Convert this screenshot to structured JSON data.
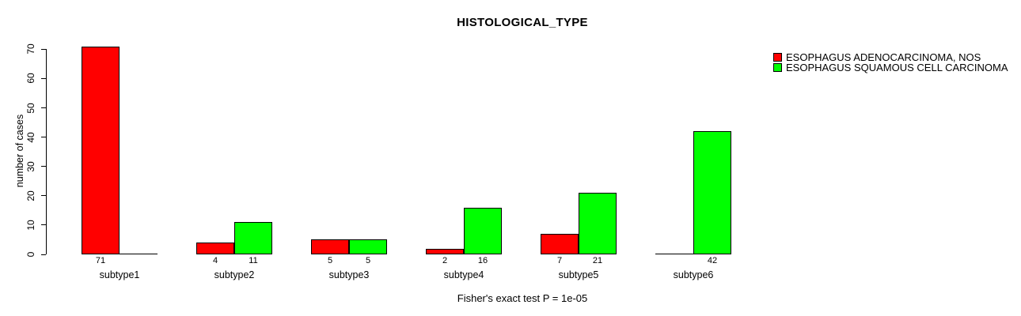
{
  "chart_data": {
    "type": "bar",
    "title": "HISTOLOGICAL_TYPE",
    "ylabel": "number of cases",
    "xlabel": "",
    "footnote": "Fisher's exact test P = 1e-05",
    "categories": [
      "subtype1",
      "subtype2",
      "subtype3",
      "subtype4",
      "subtype5",
      "subtype6"
    ],
    "series": [
      {
        "name": "ESOPHAGUS ADENOCARCINOMA, NOS",
        "color": "#ff0000",
        "values": [
          71,
          4,
          5,
          2,
          7,
          0
        ],
        "bar_labels": [
          "71",
          "4",
          "5",
          "2",
          "7",
          ""
        ]
      },
      {
        "name": "ESOPHAGUS SQUAMOUS CELL CARCINOMA",
        "color": "#00ff00",
        "values": [
          0,
          11,
          5,
          16,
          21,
          42
        ],
        "bar_labels": [
          "",
          "11",
          "5",
          "16",
          "21",
          "42"
        ]
      }
    ],
    "ylim": [
      0,
      70
    ],
    "yticks": [
      0,
      10,
      20,
      30,
      40,
      50,
      60,
      70
    ],
    "grid": false,
    "legend_position": "top-right",
    "bar_border_color": "#000000",
    "background_color": "#ffffff"
  }
}
